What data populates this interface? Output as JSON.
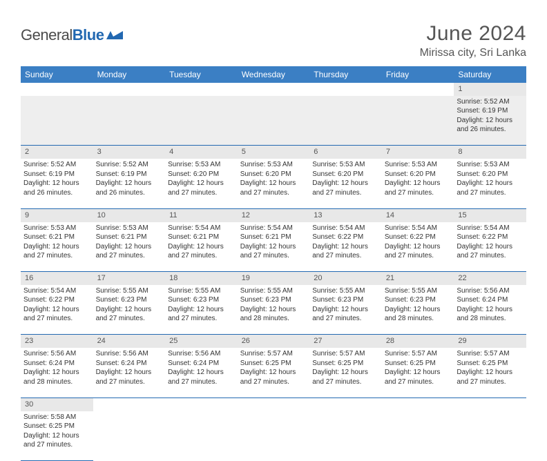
{
  "brand": {
    "name_a": "General",
    "name_b": "Blue"
  },
  "title": "June 2024",
  "location": "Mirissa city, Sri Lanka",
  "colors": {
    "header_bg": "#3b7fc4",
    "header_text": "#ffffff",
    "daynum_bg": "#e8e8e8",
    "cell_border": "#2268b1",
    "text": "#333333",
    "title_text": "#555555",
    "brand_blue": "#2268b1"
  },
  "typography": {
    "title_fontsize": 30,
    "location_fontsize": 16,
    "weekday_fontsize": 12,
    "daynum_fontsize": 11,
    "cell_fontsize": 10
  },
  "weekdays": [
    "Sunday",
    "Monday",
    "Tuesday",
    "Wednesday",
    "Thursday",
    "Friday",
    "Saturday"
  ],
  "weeks": [
    [
      null,
      null,
      null,
      null,
      null,
      null,
      {
        "d": "1",
        "sr": "Sunrise: 5:52 AM",
        "ss": "Sunset: 6:19 PM",
        "dl1": "Daylight: 12 hours",
        "dl2": "and 26 minutes."
      }
    ],
    [
      {
        "d": "2",
        "sr": "Sunrise: 5:52 AM",
        "ss": "Sunset: 6:19 PM",
        "dl1": "Daylight: 12 hours",
        "dl2": "and 26 minutes."
      },
      {
        "d": "3",
        "sr": "Sunrise: 5:52 AM",
        "ss": "Sunset: 6:19 PM",
        "dl1": "Daylight: 12 hours",
        "dl2": "and 26 minutes."
      },
      {
        "d": "4",
        "sr": "Sunrise: 5:53 AM",
        "ss": "Sunset: 6:20 PM",
        "dl1": "Daylight: 12 hours",
        "dl2": "and 27 minutes."
      },
      {
        "d": "5",
        "sr": "Sunrise: 5:53 AM",
        "ss": "Sunset: 6:20 PM",
        "dl1": "Daylight: 12 hours",
        "dl2": "and 27 minutes."
      },
      {
        "d": "6",
        "sr": "Sunrise: 5:53 AM",
        "ss": "Sunset: 6:20 PM",
        "dl1": "Daylight: 12 hours",
        "dl2": "and 27 minutes."
      },
      {
        "d": "7",
        "sr": "Sunrise: 5:53 AM",
        "ss": "Sunset: 6:20 PM",
        "dl1": "Daylight: 12 hours",
        "dl2": "and 27 minutes."
      },
      {
        "d": "8",
        "sr": "Sunrise: 5:53 AM",
        "ss": "Sunset: 6:20 PM",
        "dl1": "Daylight: 12 hours",
        "dl2": "and 27 minutes."
      }
    ],
    [
      {
        "d": "9",
        "sr": "Sunrise: 5:53 AM",
        "ss": "Sunset: 6:21 PM",
        "dl1": "Daylight: 12 hours",
        "dl2": "and 27 minutes."
      },
      {
        "d": "10",
        "sr": "Sunrise: 5:53 AM",
        "ss": "Sunset: 6:21 PM",
        "dl1": "Daylight: 12 hours",
        "dl2": "and 27 minutes."
      },
      {
        "d": "11",
        "sr": "Sunrise: 5:54 AM",
        "ss": "Sunset: 6:21 PM",
        "dl1": "Daylight: 12 hours",
        "dl2": "and 27 minutes."
      },
      {
        "d": "12",
        "sr": "Sunrise: 5:54 AM",
        "ss": "Sunset: 6:21 PM",
        "dl1": "Daylight: 12 hours",
        "dl2": "and 27 minutes."
      },
      {
        "d": "13",
        "sr": "Sunrise: 5:54 AM",
        "ss": "Sunset: 6:22 PM",
        "dl1": "Daylight: 12 hours",
        "dl2": "and 27 minutes."
      },
      {
        "d": "14",
        "sr": "Sunrise: 5:54 AM",
        "ss": "Sunset: 6:22 PM",
        "dl1": "Daylight: 12 hours",
        "dl2": "and 27 minutes."
      },
      {
        "d": "15",
        "sr": "Sunrise: 5:54 AM",
        "ss": "Sunset: 6:22 PM",
        "dl1": "Daylight: 12 hours",
        "dl2": "and 27 minutes."
      }
    ],
    [
      {
        "d": "16",
        "sr": "Sunrise: 5:54 AM",
        "ss": "Sunset: 6:22 PM",
        "dl1": "Daylight: 12 hours",
        "dl2": "and 27 minutes."
      },
      {
        "d": "17",
        "sr": "Sunrise: 5:55 AM",
        "ss": "Sunset: 6:23 PM",
        "dl1": "Daylight: 12 hours",
        "dl2": "and 27 minutes."
      },
      {
        "d": "18",
        "sr": "Sunrise: 5:55 AM",
        "ss": "Sunset: 6:23 PM",
        "dl1": "Daylight: 12 hours",
        "dl2": "and 27 minutes."
      },
      {
        "d": "19",
        "sr": "Sunrise: 5:55 AM",
        "ss": "Sunset: 6:23 PM",
        "dl1": "Daylight: 12 hours",
        "dl2": "and 28 minutes."
      },
      {
        "d": "20",
        "sr": "Sunrise: 5:55 AM",
        "ss": "Sunset: 6:23 PM",
        "dl1": "Daylight: 12 hours",
        "dl2": "and 27 minutes."
      },
      {
        "d": "21",
        "sr": "Sunrise: 5:55 AM",
        "ss": "Sunset: 6:23 PM",
        "dl1": "Daylight: 12 hours",
        "dl2": "and 28 minutes."
      },
      {
        "d": "22",
        "sr": "Sunrise: 5:56 AM",
        "ss": "Sunset: 6:24 PM",
        "dl1": "Daylight: 12 hours",
        "dl2": "and 28 minutes."
      }
    ],
    [
      {
        "d": "23",
        "sr": "Sunrise: 5:56 AM",
        "ss": "Sunset: 6:24 PM",
        "dl1": "Daylight: 12 hours",
        "dl2": "and 28 minutes."
      },
      {
        "d": "24",
        "sr": "Sunrise: 5:56 AM",
        "ss": "Sunset: 6:24 PM",
        "dl1": "Daylight: 12 hours",
        "dl2": "and 27 minutes."
      },
      {
        "d": "25",
        "sr": "Sunrise: 5:56 AM",
        "ss": "Sunset: 6:24 PM",
        "dl1": "Daylight: 12 hours",
        "dl2": "and 27 minutes."
      },
      {
        "d": "26",
        "sr": "Sunrise: 5:57 AM",
        "ss": "Sunset: 6:25 PM",
        "dl1": "Daylight: 12 hours",
        "dl2": "and 27 minutes."
      },
      {
        "d": "27",
        "sr": "Sunrise: 5:57 AM",
        "ss": "Sunset: 6:25 PM",
        "dl1": "Daylight: 12 hours",
        "dl2": "and 27 minutes."
      },
      {
        "d": "28",
        "sr": "Sunrise: 5:57 AM",
        "ss": "Sunset: 6:25 PM",
        "dl1": "Daylight: 12 hours",
        "dl2": "and 27 minutes."
      },
      {
        "d": "29",
        "sr": "Sunrise: 5:57 AM",
        "ss": "Sunset: 6:25 PM",
        "dl1": "Daylight: 12 hours",
        "dl2": "and 27 minutes."
      }
    ],
    [
      {
        "d": "30",
        "sr": "Sunrise: 5:58 AM",
        "ss": "Sunset: 6:25 PM",
        "dl1": "Daylight: 12 hours",
        "dl2": "and 27 minutes."
      },
      null,
      null,
      null,
      null,
      null,
      null
    ]
  ]
}
